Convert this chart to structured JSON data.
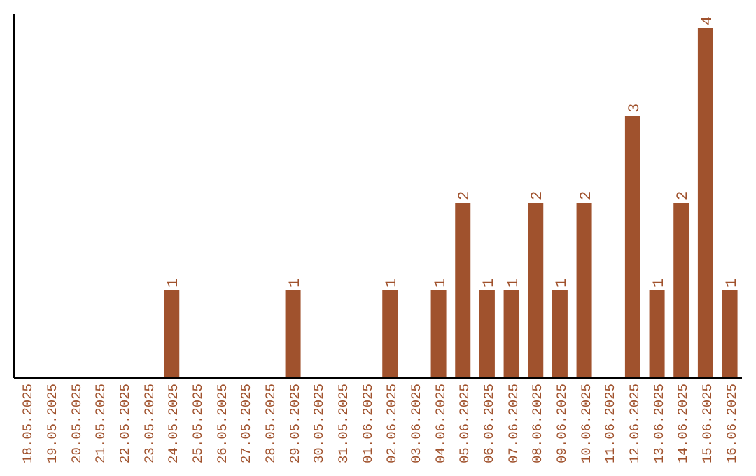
{
  "chart_data": {
    "type": "bar",
    "categories": [
      "18.05.2025",
      "19.05.2025",
      "20.05.2025",
      "21.05.2025",
      "22.05.2025",
      "23.05.2025",
      "24.05.2025",
      "25.05.2025",
      "26.05.2025",
      "27.05.2025",
      "28.05.2025",
      "29.05.2025",
      "30.05.2025",
      "31.05.2025",
      "01.06.2025",
      "02.06.2025",
      "03.06.2025",
      "04.06.2025",
      "05.06.2025",
      "06.06.2025",
      "07.06.2025",
      "08.06.2025",
      "09.06.2025",
      "10.06.2025",
      "11.06.2025",
      "12.06.2025",
      "13.06.2025",
      "14.06.2025",
      "15.06.2025",
      "16.06.2025"
    ],
    "values": [
      null,
      null,
      null,
      null,
      null,
      null,
      1,
      null,
      null,
      null,
      null,
      1,
      null,
      null,
      null,
      1,
      null,
      1,
      2,
      1,
      1,
      2,
      1,
      2,
      null,
      3,
      1,
      2,
      4,
      1
    ],
    "color": "#a0522d",
    "data_labels": true
  }
}
